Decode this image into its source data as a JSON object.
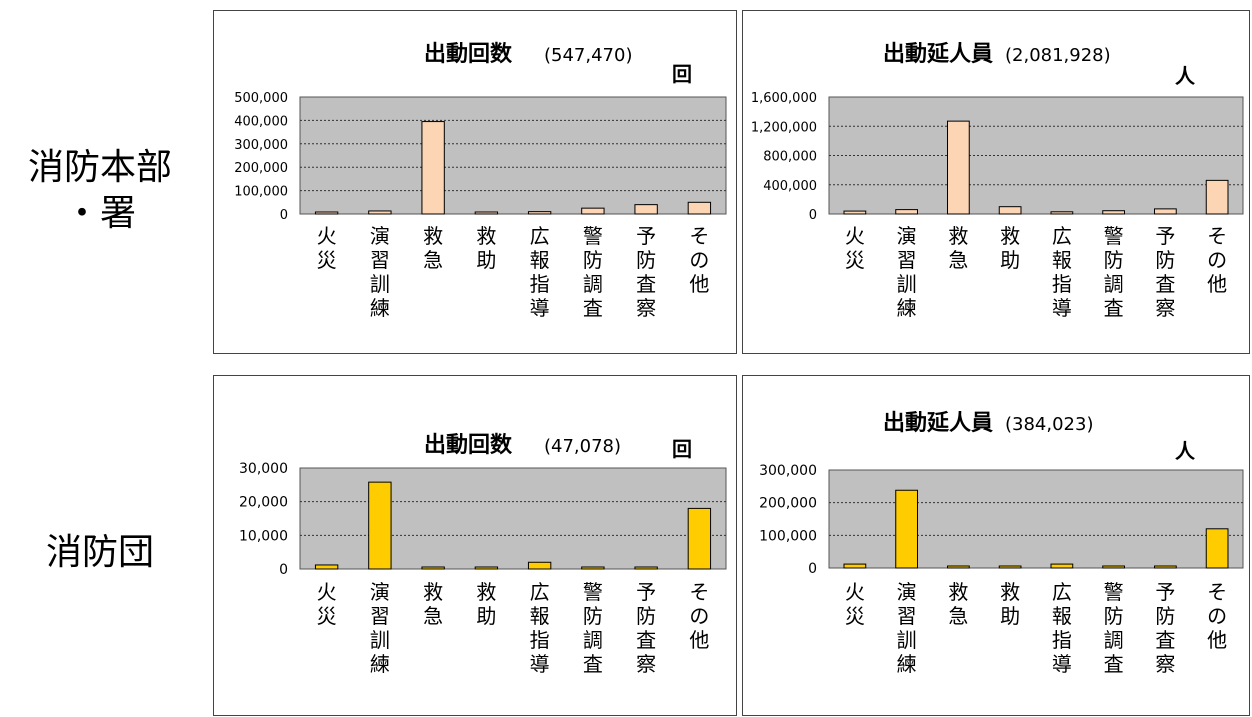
{
  "row_labels": [
    {
      "line1": "消防本部",
      "line2": "・署"
    },
    {
      "line1": "消防団"
    }
  ],
  "categories": [
    [
      "火",
      "災"
    ],
    [
      "演",
      "習",
      "訓",
      "練"
    ],
    [
      "救",
      "急"
    ],
    [
      "救",
      "助"
    ],
    [
      "広",
      "報",
      "指",
      "導"
    ],
    [
      "警",
      "防",
      "調",
      "査"
    ],
    [
      "予",
      "防",
      "査",
      "察"
    ],
    [
      "そ",
      "の",
      "他"
    ]
  ],
  "colors": {
    "peach": "#FCD5B4",
    "yellow": "#FFCC00",
    "plot_bg": "#C0C0C0"
  },
  "chart_data": [
    {
      "type": "bar",
      "title": "出動回数",
      "total": "(547,470)",
      "unit": "回",
      "categories": [
        "火災",
        "演習訓練",
        "救急",
        "救助",
        "広報指導",
        "警防調査",
        "予防査察",
        "その他"
      ],
      "values": [
        5000,
        13000,
        395000,
        6000,
        10000,
        25000,
        40000,
        50000
      ],
      "ylim": [
        0,
        500000
      ],
      "yticks": [
        "0",
        "100,000",
        "200,000",
        "300,000",
        "400,000",
        "500,000"
      ],
      "grid": true,
      "color": "peach"
    },
    {
      "type": "bar",
      "title": "出動延人員",
      "total": "(2,081,928)",
      "unit": "人",
      "categories": [
        "火災",
        "演習訓練",
        "救急",
        "救助",
        "広報指導",
        "警防調査",
        "予防査察",
        "その他"
      ],
      "values": [
        40000,
        60000,
        1270000,
        100000,
        30000,
        45000,
        70000,
        460000
      ],
      "ylim": [
        0,
        1600000
      ],
      "yticks": [
        "0",
        "400,000",
        "800,000",
        "1,200,000",
        "1,600,000"
      ],
      "grid": true,
      "color": "peach"
    },
    {
      "type": "bar",
      "title": "出動回数",
      "total": "(47,078)",
      "unit": "回",
      "categories": [
        "火災",
        "演習訓練",
        "救急",
        "救助",
        "広報指導",
        "警防調査",
        "予防査察",
        "その他"
      ],
      "values": [
        1200,
        25800,
        300,
        300,
        2000,
        300,
        0,
        18000
      ],
      "ylim": [
        0,
        30000
      ],
      "yticks": [
        "0",
        "10,000",
        "20,000",
        "30,000"
      ],
      "grid": true,
      "color": "yellow"
    },
    {
      "type": "bar",
      "title": "出動延人員",
      "total": "(384,023)",
      "unit": "人",
      "categories": [
        "火災",
        "演習訓練",
        "救急",
        "救助",
        "広報指導",
        "警防調査",
        "予防査察",
        "その他"
      ],
      "values": [
        12000,
        238000,
        3000,
        3000,
        12000,
        3000,
        0,
        120000
      ],
      "ylim": [
        0,
        300000
      ],
      "yticks": [
        "0",
        "100,000",
        "200,000",
        "300,000"
      ],
      "grid": true,
      "color": "yellow"
    }
  ]
}
